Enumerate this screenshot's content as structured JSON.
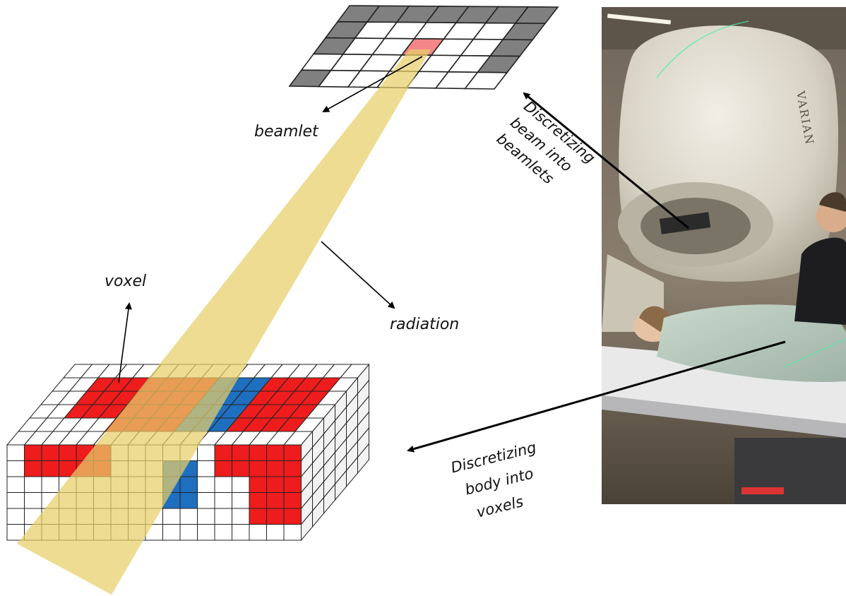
{
  "labels": {
    "beamlet": "beamlet",
    "voxel": "voxel",
    "radiation": "radiation",
    "beam_caption": [
      "Discretizing",
      "beam into",
      "beamlets"
    ],
    "body_caption": [
      "Discretizing",
      "body into",
      "voxels"
    ],
    "brand": "VARIAN"
  },
  "colors": {
    "grid_dark": "#808080",
    "grid_light": "#ffffff",
    "beamlet_highlight": "#f4868a",
    "beam": "#e7cf69",
    "organ_red": "#ee1c1c",
    "organ_blue": "#1f6fc0"
  },
  "beam_grid": {
    "rows": 5,
    "cols": 7,
    "dark_cells": [
      [
        0,
        0
      ],
      [
        0,
        1
      ],
      [
        0,
        2
      ],
      [
        0,
        3
      ],
      [
        0,
        4
      ],
      [
        0,
        5
      ],
      [
        0,
        6
      ],
      [
        1,
        0
      ],
      [
        1,
        6
      ],
      [
        2,
        0
      ],
      [
        2,
        6
      ],
      [
        3,
        6
      ],
      [
        4,
        0
      ]
    ],
    "highlight_cell": [
      2,
      3
    ]
  },
  "voxel_grid": {
    "front_rows": 6,
    "front_cols": 17,
    "depth": 6
  },
  "icons": [
    "arrow-icon",
    "beam-cone",
    "linac-photo"
  ]
}
